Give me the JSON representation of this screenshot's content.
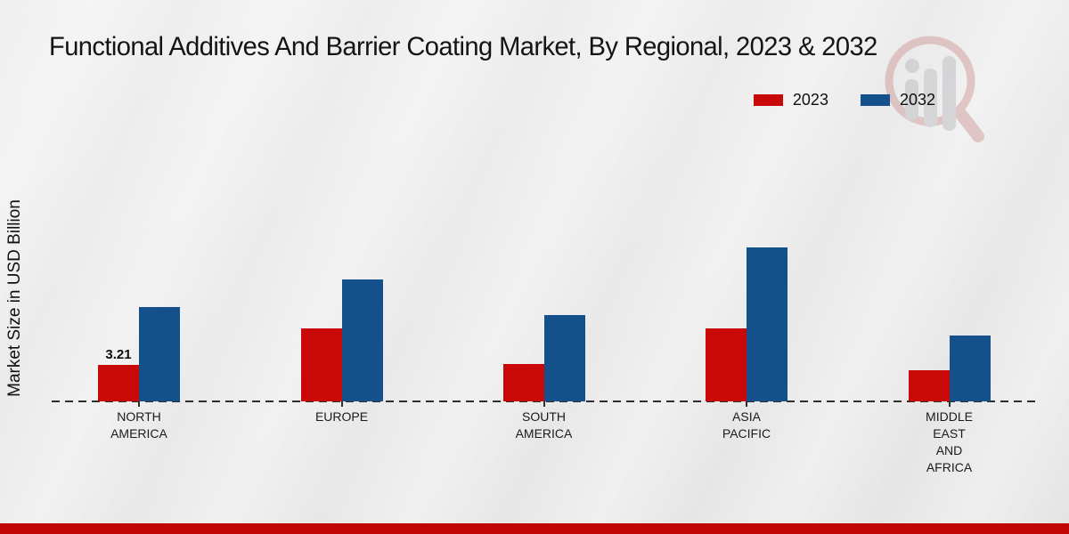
{
  "title": "Functional Additives And Barrier Coating Market, By Regional, 2023 & 2032",
  "y_axis_label": "Market Size in USD Billion",
  "legend": [
    {
      "label": "2023",
      "color": "#c90808"
    },
    {
      "label": "2032",
      "color": "#14518c"
    }
  ],
  "watermark_icon": "magnifier-bar-chart-logo",
  "footer": {
    "stripe_color": "#c10404"
  },
  "chart_data": {
    "type": "bar",
    "title": "Functional Additives And Barrier Coating Market, By Regional, 2023 & 2032",
    "xlabel": "",
    "ylabel": "Market Size in USD Billion",
    "categories": [
      "NORTH\nAMERICA",
      "EUROPE",
      "SOUTH\nAMERICA",
      "ASIA\nPACIFIC",
      "MIDDLE\nEAST\nAND\nAFRICA"
    ],
    "series": [
      {
        "name": "2023",
        "color": "#c90808",
        "values": [
          3.21,
          6.4,
          3.3,
          6.4,
          2.7
        ],
        "data_labels": [
          "3.21",
          "",
          "",
          "",
          ""
        ]
      },
      {
        "name": "2032",
        "color": "#14518c",
        "values": [
          8.3,
          10.7,
          7.6,
          13.5,
          5.8
        ],
        "data_labels": [
          "",
          "",
          "",
          "",
          ""
        ]
      }
    ],
    "ylim": [
      0,
      14.5
    ],
    "grid": false,
    "axis_line_style": "dashed",
    "legend_position": "top-right",
    "only_labeled_value": "3.21 (North America, 2023)"
  }
}
